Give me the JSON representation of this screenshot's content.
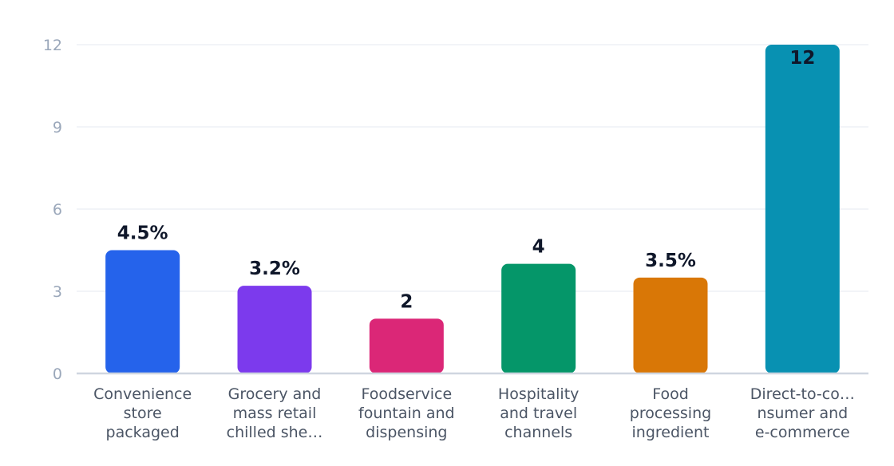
{
  "chart_data": {
    "type": "bar",
    "title": "",
    "xlabel": "",
    "ylabel": "",
    "ylim": [
      0,
      12
    ],
    "yticks": [
      "0",
      "3",
      "6",
      "9",
      "12"
    ],
    "grid": true,
    "legend": "none",
    "categories": [
      [
        "Convenience",
        "store",
        "packaged"
      ],
      [
        "Grocery and",
        "mass retail",
        "chilled she…"
      ],
      [
        "Foodservice",
        "fountain and",
        "dispensing"
      ],
      [
        "Hospitality",
        "and travel",
        "channels"
      ],
      [
        "Food",
        "processing",
        "ingredient"
      ],
      [
        "Direct-to-co…",
        "nsumer and",
        "e-commerce"
      ]
    ],
    "values": [
      4.5,
      3.2,
      2,
      4,
      3.5,
      12
    ],
    "data_labels": [
      "4.5%",
      "3.2%",
      "2",
      "4",
      "3.5%",
      "12"
    ],
    "colors": [
      "#2563eb",
      "#7c3aed",
      "#db2777",
      "#059669",
      "#d97706",
      "#0891b2"
    ]
  }
}
